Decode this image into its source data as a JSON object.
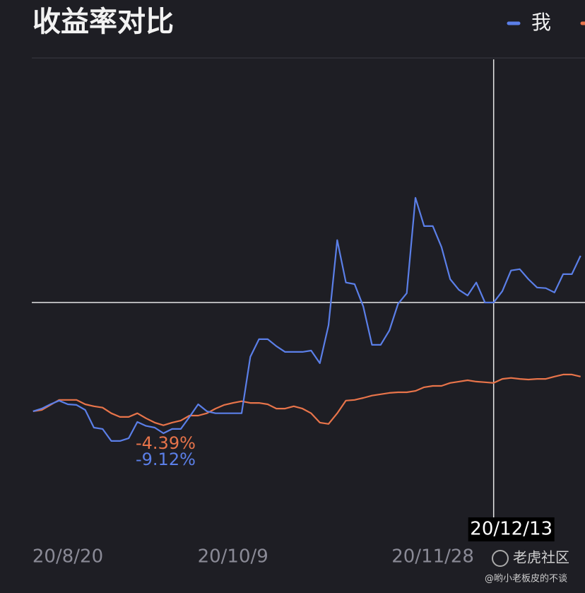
{
  "chart_data": {
    "type": "line",
    "title": "收益率对比",
    "categories": [
      null,
      null,
      null,
      null,
      "20/8/20",
      null,
      null,
      null,
      null,
      null,
      null,
      null,
      null,
      null,
      null,
      null,
      null,
      null,
      null,
      null,
      null,
      null,
      null,
      "20/10/9",
      null,
      null,
      null,
      null,
      null,
      null,
      null,
      null,
      null,
      null,
      null,
      null,
      null,
      null,
      null,
      null,
      null,
      null,
      null,
      null,
      null,
      null,
      "20/11/28",
      null,
      null,
      null,
      null,
      null,
      null,
      "20/12/13",
      null,
      null,
      null,
      null,
      null,
      null,
      null,
      null,
      null,
      null
    ],
    "series": [
      {
        "name": "我",
        "color": "#5b7fe8",
        "values": [
          0,
          0.8,
          2.1,
          3.2,
          2.1,
          1.9,
          0.4,
          -4.9,
          -5.3,
          -8.9,
          -8.9,
          -8.1,
          -3.2,
          -4.4,
          -4.9,
          -6.6,
          -5.3,
          -5.3,
          -1.7,
          2.1,
          0,
          -0.6,
          -0.6,
          -0.6,
          -0.6,
          16.3,
          21.6,
          21.6,
          19.5,
          17.8,
          17.8,
          17.8,
          18.2,
          14.4,
          25.8,
          51.3,
          38.6,
          38.1,
          31.4,
          19.9,
          19.9,
          24.2,
          32.2,
          35.4,
          64,
          55.5,
          55.5,
          49.2,
          39.6,
          36.4,
          34.7,
          38.6,
          32.6,
          32.6,
          36,
          42.2,
          42.6,
          39.6,
          37.1,
          36.9,
          35.6,
          41.1,
          41.1,
          46.6
        ]
      },
      {
        "color": "#e8744a",
        "values": [
          0,
          0.4,
          1.9,
          3.4,
          3.4,
          3.4,
          2.1,
          1.5,
          1.1,
          -0.6,
          -1.7,
          -1.7,
          -0.6,
          -2.1,
          -3.4,
          -4.2,
          -3.4,
          -2.8,
          -1.3,
          -1.3,
          -0.6,
          0.8,
          1.9,
          2.5,
          3,
          2.5,
          2.5,
          2.1,
          0.8,
          0.8,
          1.5,
          0.8,
          -0.6,
          -3.4,
          -3.8,
          -0.6,
          3.2,
          3.4,
          4,
          4.7,
          5.1,
          5.5,
          5.7,
          5.7,
          6.1,
          7.2,
          7.6,
          7.6,
          8.5,
          8.9,
          9.3,
          8.9,
          8.7,
          8.5,
          9.7,
          10,
          9.7,
          9.5,
          9.7,
          9.7,
          10.4,
          11,
          11,
          10.4
        ]
      }
    ],
    "ylim": [
      -33.5,
      105.9
    ],
    "crosshair": {
      "x": "20/12/13",
      "y": 32.6
    },
    "annotations": [
      {
        "text": "-4.39%",
        "color": "#e8744a"
      },
      {
        "text": "-9.12%",
        "color": "#5b7fe8"
      }
    ],
    "watermark": [
      "老虎社区",
      "@哟小老板皮的不谈"
    ]
  }
}
